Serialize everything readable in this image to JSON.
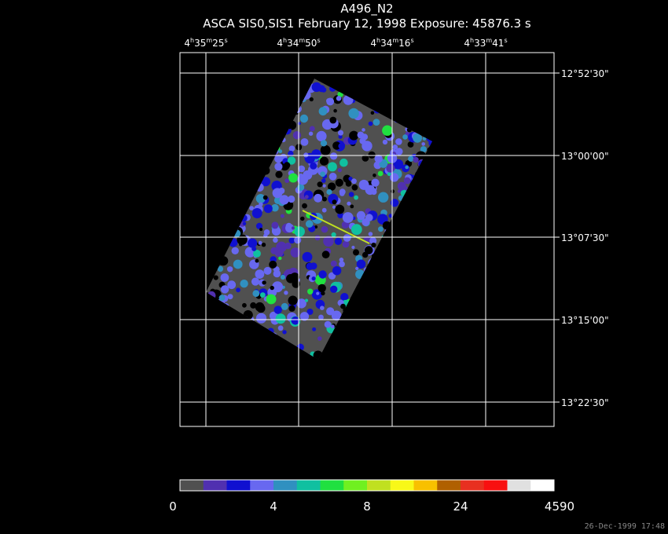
{
  "header": {
    "title": "A496_N2",
    "subtitle": "ASCA SIS0,SIS1 February 12, 1998 Exposure: 45876.3 s"
  },
  "ra_labels": [
    [
      "4",
      "h",
      "35",
      "m",
      "25",
      "s"
    ],
    [
      "4",
      "h",
      "34",
      "m",
      "50",
      "s"
    ],
    [
      "4",
      "h",
      "34",
      "m",
      "16",
      "s"
    ],
    [
      "4",
      "h",
      "33",
      "m",
      "41",
      "s"
    ]
  ],
  "dec_labels": [
    "12°52'30\"",
    "13°00'00\"",
    "13°07'30\"",
    "13°15'00\"",
    "13°22'30\""
  ],
  "colorbar": {
    "colors": [
      "#505050",
      "#5030b0",
      "#1010d0",
      "#6868f0",
      "#3090c0",
      "#10c0a0",
      "#20e040",
      "#70f020",
      "#c0e020",
      "#f8f818",
      "#f8c000",
      "#b06000",
      "#e83020",
      "#f81010",
      "#e0e0e0",
      "#ffffff"
    ],
    "tick_labels": [
      0,
      4,
      8,
      24,
      4590
    ]
  },
  "timestamp": "26-Dec-1999 17:48"
}
